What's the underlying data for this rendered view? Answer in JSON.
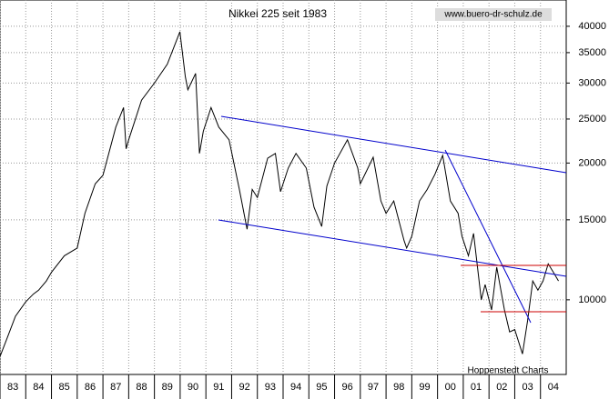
{
  "chart_data": {
    "type": "line",
    "title": "Nikkei 225 seit 1983",
    "source": "www.buero-dr-schulz.de",
    "annotation": "Hoppenstedt Charts",
    "log_scale": true,
    "grid": true,
    "xlim": [
      1983,
      2005
    ],
    "xticks": [
      {
        "value": 1983,
        "label": "83"
      },
      {
        "value": 1984,
        "label": "84"
      },
      {
        "value": 1985,
        "label": "85"
      },
      {
        "value": 1986,
        "label": "86"
      },
      {
        "value": 1987,
        "label": "87"
      },
      {
        "value": 1988,
        "label": "88"
      },
      {
        "value": 1989,
        "label": "89"
      },
      {
        "value": 1990,
        "label": "90"
      },
      {
        "value": 1991,
        "label": "91"
      },
      {
        "value": 1992,
        "label": "92"
      },
      {
        "value": 1993,
        "label": "93"
      },
      {
        "value": 1994,
        "label": "94"
      },
      {
        "value": 1995,
        "label": "95"
      },
      {
        "value": 1996,
        "label": "96"
      },
      {
        "value": 1997,
        "label": "97"
      },
      {
        "value": 1998,
        "label": "98"
      },
      {
        "value": 1999,
        "label": "99"
      },
      {
        "value": 2000,
        "label": "00"
      },
      {
        "value": 2001,
        "label": "01"
      },
      {
        "value": 2002,
        "label": "02"
      },
      {
        "value": 2003,
        "label": "03"
      },
      {
        "value": 2004,
        "label": "04"
      }
    ],
    "ylim": [
      6850,
      45700
    ],
    "yticks": [
      10000,
      15000,
      20000,
      25000,
      30000,
      35000,
      40000
    ],
    "x": [
      1983.0,
      1983.3,
      1983.6,
      1984.0,
      1984.3,
      1984.5,
      1984.8,
      1985.0,
      1985.5,
      1986.0,
      1986.3,
      1986.7,
      1987.0,
      1987.5,
      1987.8,
      1987.9,
      1988.0,
      1988.5,
      1989.0,
      1989.5,
      1989.99,
      1990.2,
      1990.3,
      1990.6,
      1990.75,
      1990.9,
      1991.2,
      1991.5,
      1991.9,
      1992.3,
      1992.6,
      1992.8,
      1993.0,
      1993.4,
      1993.7,
      1993.9,
      1994.2,
      1994.5,
      1994.9,
      1995.2,
      1995.5,
      1995.7,
      1996.0,
      1996.5,
      1996.9,
      1997.0,
      1997.5,
      1997.8,
      1998.0,
      1998.3,
      1998.7,
      1998.8,
      1999.0,
      1999.3,
      1999.6,
      1999.9,
      2000.2,
      2000.5,
      2000.8,
      2000.95,
      2001.2,
      2001.4,
      2001.7,
      2001.85,
      2002.1,
      2002.3,
      2002.6,
      2002.8,
      2003.0,
      2003.3,
      2003.5,
      2003.7,
      2003.9,
      2004.1,
      2004.3,
      2004.5,
      2004.7
    ],
    "series": [
      {
        "name": "Nikkei 225",
        "color": "#000000",
        "values": [
          7500,
          8300,
          9200,
          9900,
          10300,
          10500,
          11000,
          11500,
          12500,
          13000,
          15500,
          18000,
          18800,
          24000,
          26500,
          21500,
          22500,
          27500,
          30000,
          33000,
          38900,
          31000,
          29000,
          31500,
          21000,
          23500,
          26500,
          24000,
          22500,
          17500,
          14300,
          17500,
          16800,
          20500,
          21000,
          17300,
          19500,
          21000,
          19500,
          16000,
          14500,
          17800,
          20000,
          22500,
          19500,
          18000,
          20600,
          16500,
          15500,
          16500,
          13500,
          13000,
          13800,
          16500,
          17500,
          18900,
          20800,
          16500,
          15500,
          13800,
          12500,
          14000,
          10000,
          10800,
          9500,
          11800,
          9500,
          8500,
          8600,
          7600,
          9000,
          11000,
          10500,
          11000,
          12000,
          11500,
          11000
        ]
      }
    ]
  }
}
